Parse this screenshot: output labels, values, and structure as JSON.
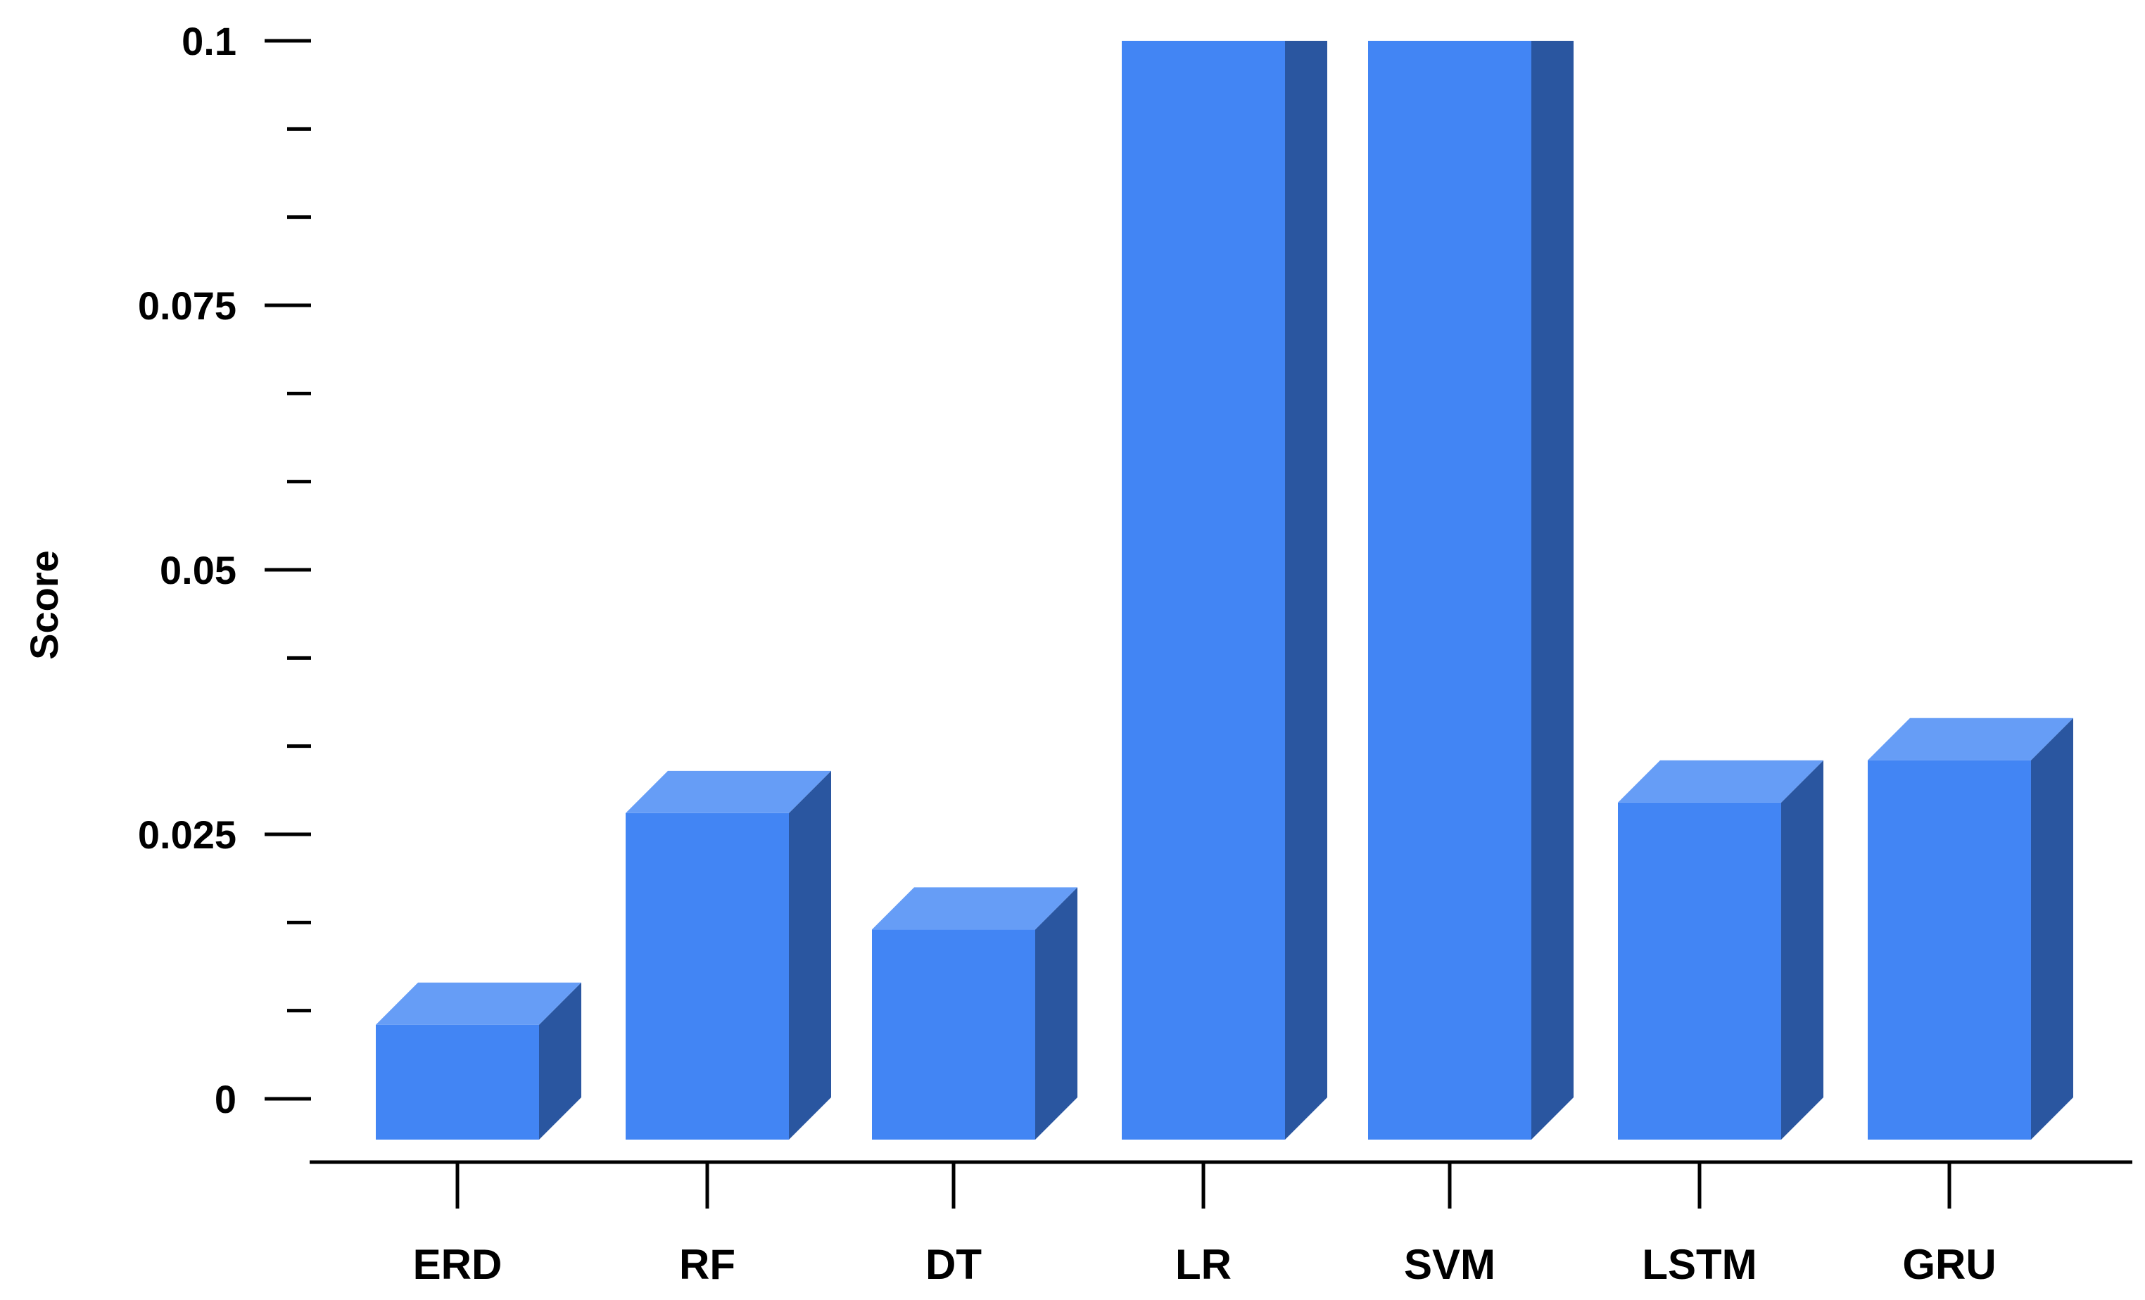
{
  "chart_data": {
    "type": "bar",
    "style": "3d",
    "title": "",
    "xlabel": "",
    "ylabel": "Score",
    "categories": [
      "ERD",
      "RF",
      "DT",
      "LR",
      "SVM",
      "LSTM",
      "GRU"
    ],
    "values": [
      0.007,
      0.027,
      0.016,
      0.1,
      0.1,
      0.028,
      0.032
    ],
    "ylim": [
      0,
      0.1
    ],
    "yticks": [
      "0",
      "0.025",
      "0.05",
      "0.075",
      "0.1"
    ],
    "ytick_values": [
      0,
      0.025,
      0.05,
      0.075,
      0.1
    ],
    "grid": false,
    "legend": "none"
  },
  "colors": {
    "bar_front": "#4285F4",
    "bar_top": "#669DF6",
    "bar_side": "#2A56A0",
    "axis": "#000000"
  }
}
